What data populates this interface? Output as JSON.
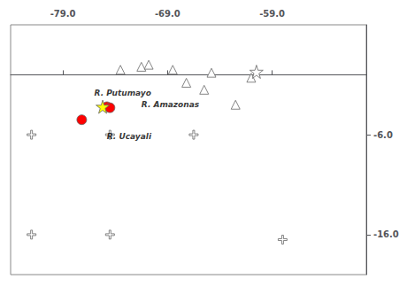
{
  "chart_data": {
    "type": "scatter",
    "xlim": [
      -84,
      -50
    ],
    "ylim": [
      -20,
      5
    ],
    "xticks": [
      {
        "value": -79.0,
        "label": "-79.0"
      },
      {
        "value": -69.0,
        "label": "-69.0"
      },
      {
        "value": -59.0,
        "label": "-59.0"
      }
    ],
    "yticks": [
      {
        "value": -6.0,
        "label": "-6.0"
      },
      {
        "value": -16.0,
        "label": "-16.0"
      }
    ],
    "grid": false,
    "series": [
      {
        "marker": "triangle",
        "color": "white",
        "x": [
          -73.5,
          -71.5,
          -70.8,
          -68.5,
          -67.2,
          -65.5,
          -64.8,
          -62.5,
          -61.0
        ],
        "values": [
          0.5,
          0.8,
          1.0,
          0.5,
          -0.8,
          -1.5,
          0.2,
          -3.0,
          -0.3
        ]
      },
      {
        "marker": "star",
        "color": "white",
        "x": [
          -60.5
        ],
        "values": [
          0.3
        ]
      },
      {
        "marker": "circle",
        "color": "red",
        "x": [
          -77.2,
          -74.8,
          -74.5
        ],
        "values": [
          -4.5,
          -3.2,
          -3.3
        ]
      },
      {
        "marker": "star",
        "color": "yellow",
        "x": [
          -75.2
        ],
        "values": [
          -3.2
        ]
      },
      {
        "marker": "plus",
        "color": "white",
        "x": [
          -82.0,
          -66.5,
          -82.0,
          -58.0,
          -74.5,
          -74.5
        ],
        "values": [
          -6.0,
          -6.0,
          -16.0,
          -16.5,
          -6.0,
          -16.0
        ]
      }
    ],
    "annotations": [
      {
        "text": "R. Putumayo",
        "x": -76.0,
        "y": -1.8
      },
      {
        "text": "R. Amazonas",
        "x": -71.5,
        "y": -3.0
      },
      {
        "text": "R. Ucayali",
        "x": -74.8,
        "y": -6.2
      }
    ]
  }
}
